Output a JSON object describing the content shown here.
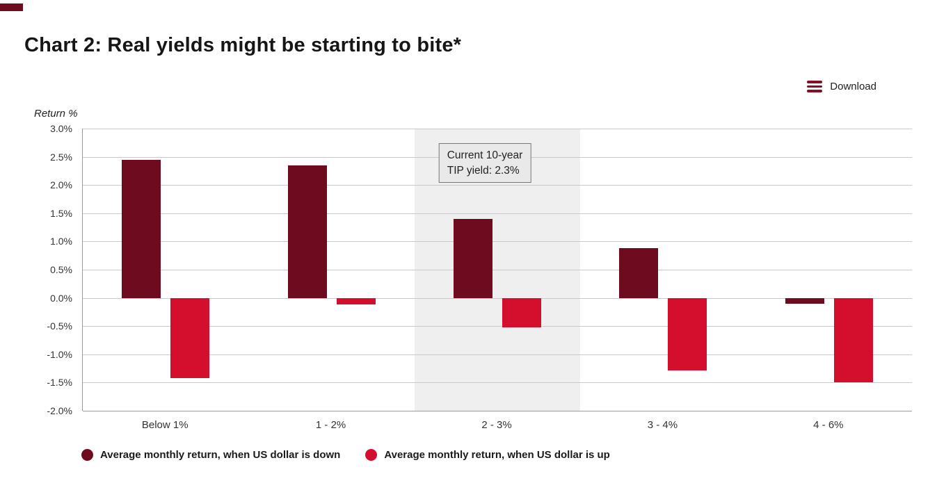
{
  "header": {
    "title": "Chart 2: Real yields might be starting to bite*"
  },
  "toolbar": {
    "download_label": "Download",
    "menu_icon": "hamburger-lines"
  },
  "colors": {
    "accent_bar": "#6E0B1F",
    "download_icon": "#8A0C24",
    "highlight_band": "#EFEFEF",
    "gridline": "#C9C9C9",
    "axis": "#9A9A9A",
    "annotation_bg": "#E9E9E9",
    "annotation_border": "#777777"
  },
  "chart_data": {
    "type": "bar",
    "title": "Chart 2: Real yields might be starting to bite*",
    "ylabel": "Return %",
    "xlabel": "",
    "ylim": [
      -2.0,
      3.0
    ],
    "ytick_step": 0.5,
    "grid": true,
    "legend_position": "bottom",
    "categories": [
      "Below 1%",
      "1 - 2%",
      "2 - 3%",
      "3 - 4%",
      "4 - 6%"
    ],
    "series": [
      {
        "name": "Average monthly return, when US dollar is down",
        "color": "#6E0B1F",
        "values": [
          2.45,
          2.35,
          1.4,
          0.88,
          -0.1
        ]
      },
      {
        "name": "Average monthly return, when US dollar is up",
        "color": "#D40F2E",
        "values": [
          -1.42,
          -0.12,
          -0.52,
          -1.28,
          -1.5
        ]
      }
    ],
    "highlight": {
      "category": "2 - 3%"
    },
    "annotation": {
      "line1": "Current 10-year",
      "line2": "TIP yield: 2.3%"
    }
  }
}
